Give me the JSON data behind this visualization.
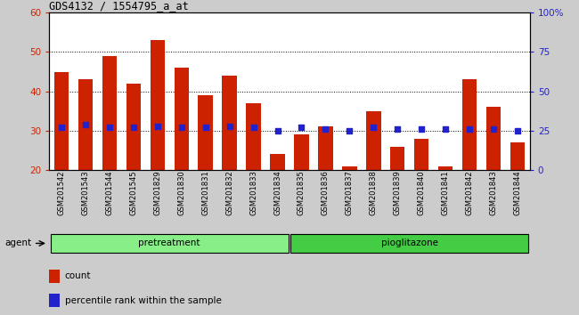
{
  "title": "GDS4132 / 1554795_a_at",
  "samples": [
    "GSM201542",
    "GSM201543",
    "GSM201544",
    "GSM201545",
    "GSM201829",
    "GSM201830",
    "GSM201831",
    "GSM201832",
    "GSM201833",
    "GSM201834",
    "GSM201835",
    "GSM201836",
    "GSM201837",
    "GSM201838",
    "GSM201839",
    "GSM201840",
    "GSM201841",
    "GSM201842",
    "GSM201843",
    "GSM201844"
  ],
  "counts": [
    45,
    43,
    49,
    42,
    53,
    46,
    39,
    44,
    37,
    24,
    29,
    31,
    21,
    35,
    26,
    28,
    21,
    43,
    36,
    27
  ],
  "percentile_ranks": [
    27,
    29,
    27,
    27,
    28,
    27,
    27,
    28,
    27,
    25,
    27,
    26,
    25,
    27,
    26,
    26,
    26,
    26,
    26,
    25
  ],
  "bar_color": "#cc2200",
  "dot_color": "#2222cc",
  "ylim_left": [
    20,
    60
  ],
  "ylim_right": [
    0,
    100
  ],
  "yticks_left": [
    20,
    30,
    40,
    50,
    60
  ],
  "yticks_right": [
    0,
    25,
    50,
    75,
    100
  ],
  "ytick_labels_right": [
    "0",
    "25",
    "50",
    "75",
    "100%"
  ],
  "bar_width": 0.6,
  "pretreatment_color_light": "#bbffbb",
  "pretreatment_color": "#88ee88",
  "pioglitazone_color": "#44cc44",
  "background_color": "#cccccc",
  "plot_bg_color": "#cccccc",
  "agent_label": "agent",
  "legend_count_label": "count",
  "legend_pct_label": "percentile rank within the sample"
}
